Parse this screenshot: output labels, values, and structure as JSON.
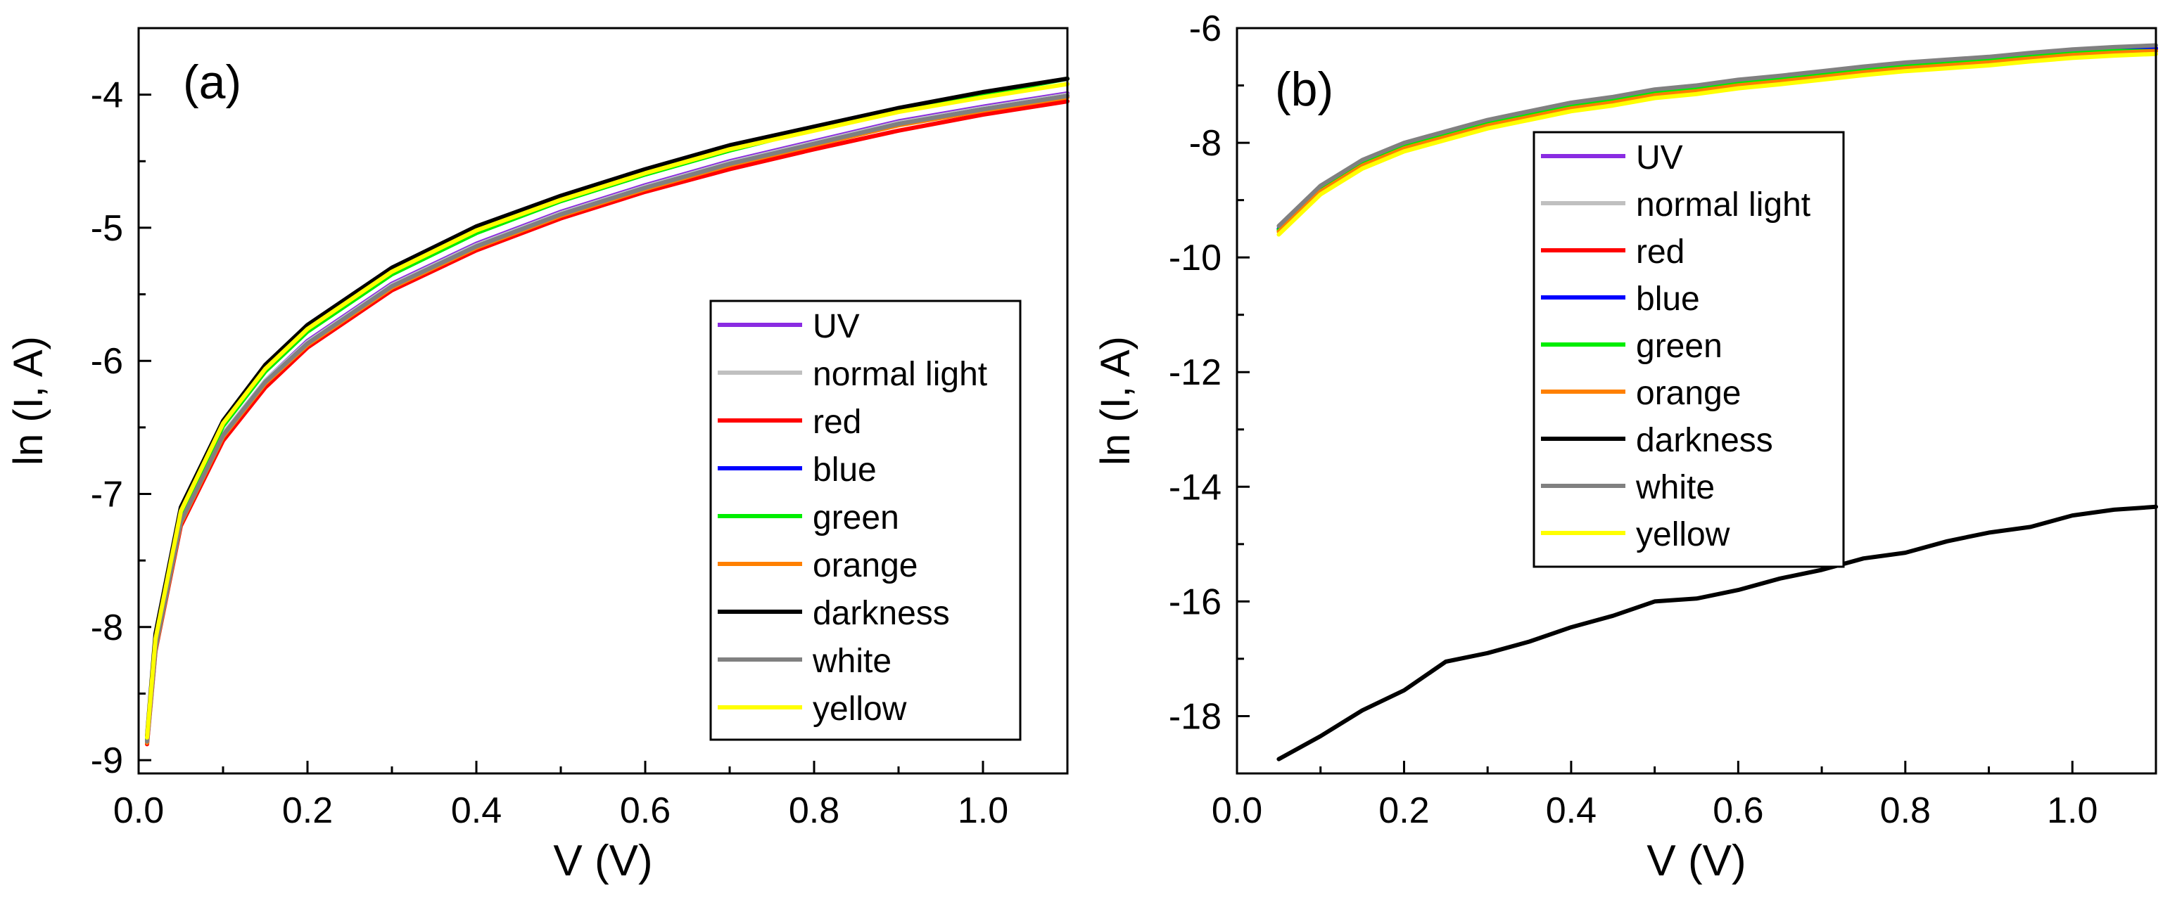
{
  "chart_data": [
    {
      "type": "line",
      "panel_label": "(a)",
      "title": "",
      "xlabel": "V (V)",
      "ylabel": "ln (I, A)",
      "xlim": [
        0,
        1.1
      ],
      "ylim": [
        -9.1,
        -3.5
      ],
      "xticks": [
        0.0,
        0.2,
        0.4,
        0.6,
        0.8,
        1.0
      ],
      "xtick_labels": [
        "0.0",
        "0.2",
        "0.4",
        "0.6",
        "0.8",
        "1.0"
      ],
      "yticks": [
        -9,
        -8,
        -7,
        -6,
        -5,
        -4
      ],
      "ytick_labels": [
        "-9",
        "-8",
        "-7",
        "-6",
        "-5",
        "-4"
      ],
      "grid": false,
      "legend_position": "bottom-right",
      "x": [
        0.01,
        0.02,
        0.05,
        0.1,
        0.15,
        0.2,
        0.3,
        0.4,
        0.5,
        0.6,
        0.7,
        0.8,
        0.9,
        1.0,
        1.1
      ],
      "series": [
        {
          "name": "UV",
          "color": "#8a2be2",
          "values": [
            -8.85,
            -8.15,
            -7.2,
            -6.55,
            -6.15,
            -5.85,
            -5.42,
            -5.12,
            -4.88,
            -4.68,
            -4.5,
            -4.35,
            -4.2,
            -4.09,
            -3.99
          ]
        },
        {
          "name": "normal light",
          "color": "#c0c0c0",
          "values": [
            -8.85,
            -8.15,
            -7.2,
            -6.55,
            -6.15,
            -5.86,
            -5.43,
            -5.13,
            -4.89,
            -4.69,
            -4.51,
            -4.36,
            -4.21,
            -4.1,
            -4.0
          ]
        },
        {
          "name": "red",
          "color": "#ff0000",
          "values": [
            -8.88,
            -8.18,
            -7.24,
            -6.6,
            -6.2,
            -5.9,
            -5.47,
            -5.17,
            -4.93,
            -4.73,
            -4.56,
            -4.41,
            -4.27,
            -4.15,
            -4.05
          ]
        },
        {
          "name": "blue",
          "color": "#0000ff",
          "values": [
            -8.86,
            -8.16,
            -7.21,
            -6.56,
            -6.16,
            -5.87,
            -5.44,
            -5.14,
            -4.9,
            -4.7,
            -4.52,
            -4.37,
            -4.22,
            -4.11,
            -4.01
          ]
        },
        {
          "name": "green",
          "color": "#00ee00",
          "values": [
            -8.84,
            -8.12,
            -7.16,
            -6.49,
            -6.08,
            -5.78,
            -5.35,
            -5.04,
            -4.8,
            -4.6,
            -4.42,
            -4.26,
            -4.12,
            -4.0,
            -3.88
          ]
        },
        {
          "name": "orange",
          "color": "#ff8000",
          "values": [
            -8.87,
            -8.17,
            -7.22,
            -6.57,
            -6.17,
            -5.88,
            -5.45,
            -5.15,
            -4.91,
            -4.71,
            -4.53,
            -4.38,
            -4.23,
            -4.12,
            -4.02
          ]
        },
        {
          "name": "darkness",
          "color": "#000000",
          "values": [
            -8.82,
            -8.05,
            -7.1,
            -6.45,
            -6.03,
            -5.73,
            -5.3,
            -4.99,
            -4.76,
            -4.56,
            -4.38,
            -4.24,
            -4.1,
            -3.98,
            -3.88
          ]
        },
        {
          "name": "white",
          "color": "#808080",
          "values": [
            -8.86,
            -8.16,
            -7.21,
            -6.56,
            -6.16,
            -5.87,
            -5.44,
            -5.14,
            -4.9,
            -4.7,
            -4.52,
            -4.37,
            -4.22,
            -4.11,
            -4.01
          ]
        },
        {
          "name": "yellow",
          "color": "#ffff00",
          "values": [
            -8.83,
            -8.09,
            -7.13,
            -6.47,
            -6.06,
            -5.76,
            -5.33,
            -5.02,
            -4.79,
            -4.59,
            -4.41,
            -4.27,
            -4.13,
            -4.02,
            -3.92
          ]
        }
      ]
    },
    {
      "type": "line",
      "panel_label": "(b)",
      "title": "",
      "xlabel": "V (V)",
      "ylabel": "ln (I, A)",
      "xlim": [
        0,
        1.1
      ],
      "ylim": [
        -19,
        -6
      ],
      "xticks": [
        0.0,
        0.2,
        0.4,
        0.6,
        0.8,
        1.0
      ],
      "xtick_labels": [
        "0.0",
        "0.2",
        "0.4",
        "0.6",
        "0.8",
        "1.0"
      ],
      "yticks": [
        -18,
        -16,
        -14,
        -12,
        -10,
        -8,
        -6
      ],
      "ytick_labels": [
        "-18",
        "-16",
        "-14",
        "-12",
        "-10",
        "-8",
        "-6"
      ],
      "grid": false,
      "legend_position": "upper-center",
      "x": [
        0.05,
        0.1,
        0.15,
        0.2,
        0.25,
        0.3,
        0.35,
        0.4,
        0.45,
        0.5,
        0.55,
        0.6,
        0.65,
        0.7,
        0.75,
        0.8,
        0.85,
        0.9,
        0.95,
        1.0,
        1.05,
        1.1
      ],
      "series": [
        {
          "name": "UV",
          "color": "#8a2be2",
          "values": [
            -9.5,
            -8.8,
            -8.35,
            -8.05,
            -7.85,
            -7.65,
            -7.5,
            -7.35,
            -7.25,
            -7.12,
            -7.05,
            -6.95,
            -6.88,
            -6.8,
            -6.72,
            -6.65,
            -6.6,
            -6.55,
            -6.48,
            -6.42,
            -6.38,
            -6.35
          ]
        },
        {
          "name": "normal light",
          "color": "#c0c0c0",
          "values": [
            -9.5,
            -8.8,
            -8.35,
            -8.05,
            -7.85,
            -7.65,
            -7.5,
            -7.35,
            -7.25,
            -7.12,
            -7.05,
            -6.95,
            -6.88,
            -6.8,
            -6.72,
            -6.65,
            -6.6,
            -6.55,
            -6.48,
            -6.42,
            -6.38,
            -6.35
          ]
        },
        {
          "name": "red",
          "color": "#ff0000",
          "values": [
            -9.52,
            -8.82,
            -8.37,
            -8.07,
            -7.87,
            -7.67,
            -7.52,
            -7.37,
            -7.27,
            -7.14,
            -7.07,
            -6.97,
            -6.9,
            -6.82,
            -6.74,
            -6.67,
            -6.62,
            -6.57,
            -6.5,
            -6.44,
            -6.4,
            -6.37
          ]
        },
        {
          "name": "blue",
          "color": "#0000ff",
          "values": [
            -9.5,
            -8.8,
            -8.35,
            -8.05,
            -7.85,
            -7.65,
            -7.5,
            -7.35,
            -7.25,
            -7.12,
            -7.05,
            -6.95,
            -6.88,
            -6.8,
            -6.72,
            -6.65,
            -6.6,
            -6.55,
            -6.48,
            -6.42,
            -6.38,
            -6.35
          ]
        },
        {
          "name": "green",
          "color": "#00ee00",
          "values": [
            -9.52,
            -8.82,
            -8.37,
            -8.07,
            -7.87,
            -7.67,
            -7.52,
            -7.37,
            -7.27,
            -7.14,
            -7.07,
            -6.97,
            -6.9,
            -6.82,
            -6.74,
            -6.67,
            -6.62,
            -6.57,
            -6.5,
            -6.44,
            -6.4,
            -6.4
          ]
        },
        {
          "name": "orange",
          "color": "#ff8000",
          "values": [
            -9.55,
            -8.85,
            -8.4,
            -8.1,
            -7.9,
            -7.7,
            -7.55,
            -7.4,
            -7.3,
            -7.17,
            -7.1,
            -7.0,
            -6.93,
            -6.85,
            -6.77,
            -6.7,
            -6.65,
            -6.6,
            -6.53,
            -6.47,
            -6.43,
            -6.4
          ]
        },
        {
          "name": "darkness",
          "color": "#000000",
          "values": [
            -18.75,
            -18.35,
            -17.9,
            -17.55,
            -17.05,
            -16.9,
            -16.7,
            -16.45,
            -16.25,
            -16.0,
            -15.95,
            -15.8,
            -15.6,
            -15.45,
            -15.25,
            -15.15,
            -14.95,
            -14.8,
            -14.7,
            -14.5,
            -14.4,
            -14.35
          ]
        },
        {
          "name": "white",
          "color": "#808080",
          "values": [
            -9.45,
            -8.75,
            -8.3,
            -8.0,
            -7.8,
            -7.6,
            -7.45,
            -7.3,
            -7.2,
            -7.07,
            -7.0,
            -6.9,
            -6.83,
            -6.75,
            -6.67,
            -6.6,
            -6.55,
            -6.5,
            -6.43,
            -6.37,
            -6.33,
            -6.3
          ]
        },
        {
          "name": "yellow",
          "color": "#ffff00",
          "values": [
            -9.6,
            -8.9,
            -8.45,
            -8.15,
            -7.95,
            -7.75,
            -7.6,
            -7.45,
            -7.35,
            -7.22,
            -7.15,
            -7.05,
            -6.98,
            -6.9,
            -6.82,
            -6.75,
            -6.7,
            -6.65,
            -6.58,
            -6.52,
            -6.48,
            -6.45
          ]
        }
      ]
    }
  ]
}
